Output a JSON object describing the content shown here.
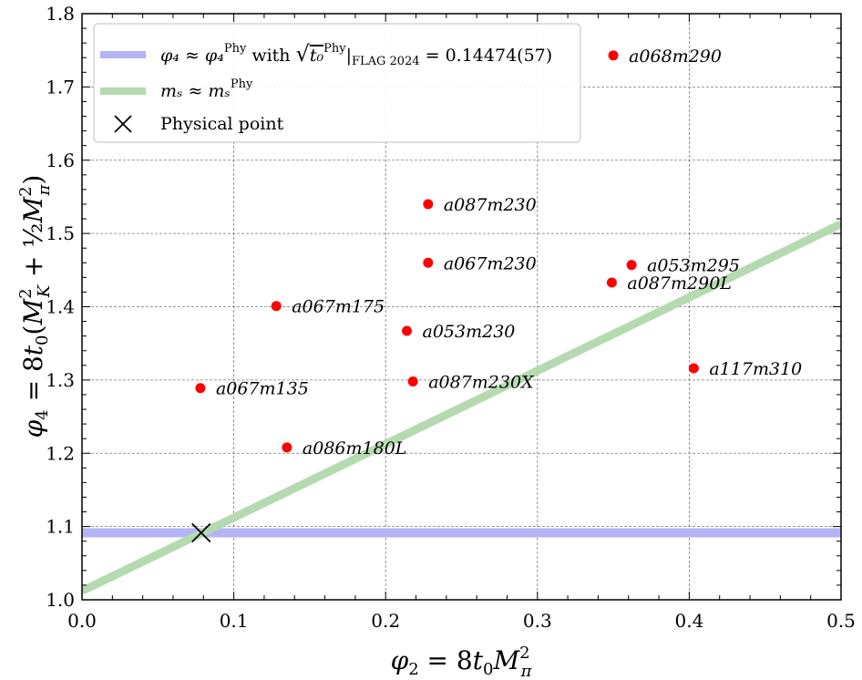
{
  "chart_data": {
    "type": "scatter",
    "title": "",
    "xlabel": "φ₂ = 8t₀M²π",
    "ylabel": "φ₄ = 8t₀(M²K + ½M²π)",
    "xlim": [
      0.0,
      0.5
    ],
    "ylim": [
      1.0,
      1.8
    ],
    "grid": true,
    "x_ticks": [
      "0.0",
      "0.1",
      "0.2",
      "0.3",
      "0.4",
      "0.5"
    ],
    "y_ticks": [
      "1.0",
      "1.1",
      "1.2",
      "1.3",
      "1.4",
      "1.5",
      "1.6",
      "1.7",
      "1.8"
    ],
    "legend_position": "top-left",
    "points": [
      {
        "label": "a068m290",
        "x": 0.35,
        "y": 1.743
      },
      {
        "label": "a087m230",
        "x": 0.228,
        "y": 1.54
      },
      {
        "label": "a067m230",
        "x": 0.228,
        "y": 1.46
      },
      {
        "label": "a053m295",
        "x": 0.362,
        "y": 1.457
      },
      {
        "label": "a087m290L",
        "x": 0.349,
        "y": 1.433
      },
      {
        "label": "a067m175",
        "x": 0.128,
        "y": 1.401
      },
      {
        "label": "a053m230",
        "x": 0.214,
        "y": 1.367
      },
      {
        "label": "a117m310",
        "x": 0.403,
        "y": 1.316
      },
      {
        "label": "a087m230X",
        "x": 0.218,
        "y": 1.298
      },
      {
        "label": "a067m135",
        "x": 0.078,
        "y": 1.289
      },
      {
        "label": "a086m180L",
        "x": 0.135,
        "y": 1.208
      }
    ],
    "lines": [
      {
        "name": "phi4_phys",
        "kind": "horizontal",
        "y": 1.0915,
        "color": "#b3b3f5"
      },
      {
        "name": "ms_phys",
        "kind": "linear",
        "points": [
          [
            0.0,
            1.012
          ],
          [
            0.5,
            1.513
          ]
        ],
        "color": "#b5dab0"
      }
    ],
    "physical_point": {
      "x": 0.0785,
      "y": 1.0915
    },
    "legend": [
      {
        "name": "phi4",
        "text_lhs": "φ₄ ≈ φ₄",
        "text_sup": "Phy",
        "text_with": "with",
        "text_sqrt": "t₀",
        "text_sqrt_sup": "Phy",
        "text_sub": "FLAG 2024",
        "text_rhs": "= 0.14474(57)"
      },
      {
        "name": "ms",
        "text_lhs": "mₛ ≈ mₛ",
        "text_sup": "Phy"
      },
      {
        "name": "physical",
        "text": "Physical point"
      }
    ],
    "colors": {
      "point": "#ff0000",
      "blue_band": "#b3b3f5",
      "green_band": "#b5dab0"
    }
  }
}
